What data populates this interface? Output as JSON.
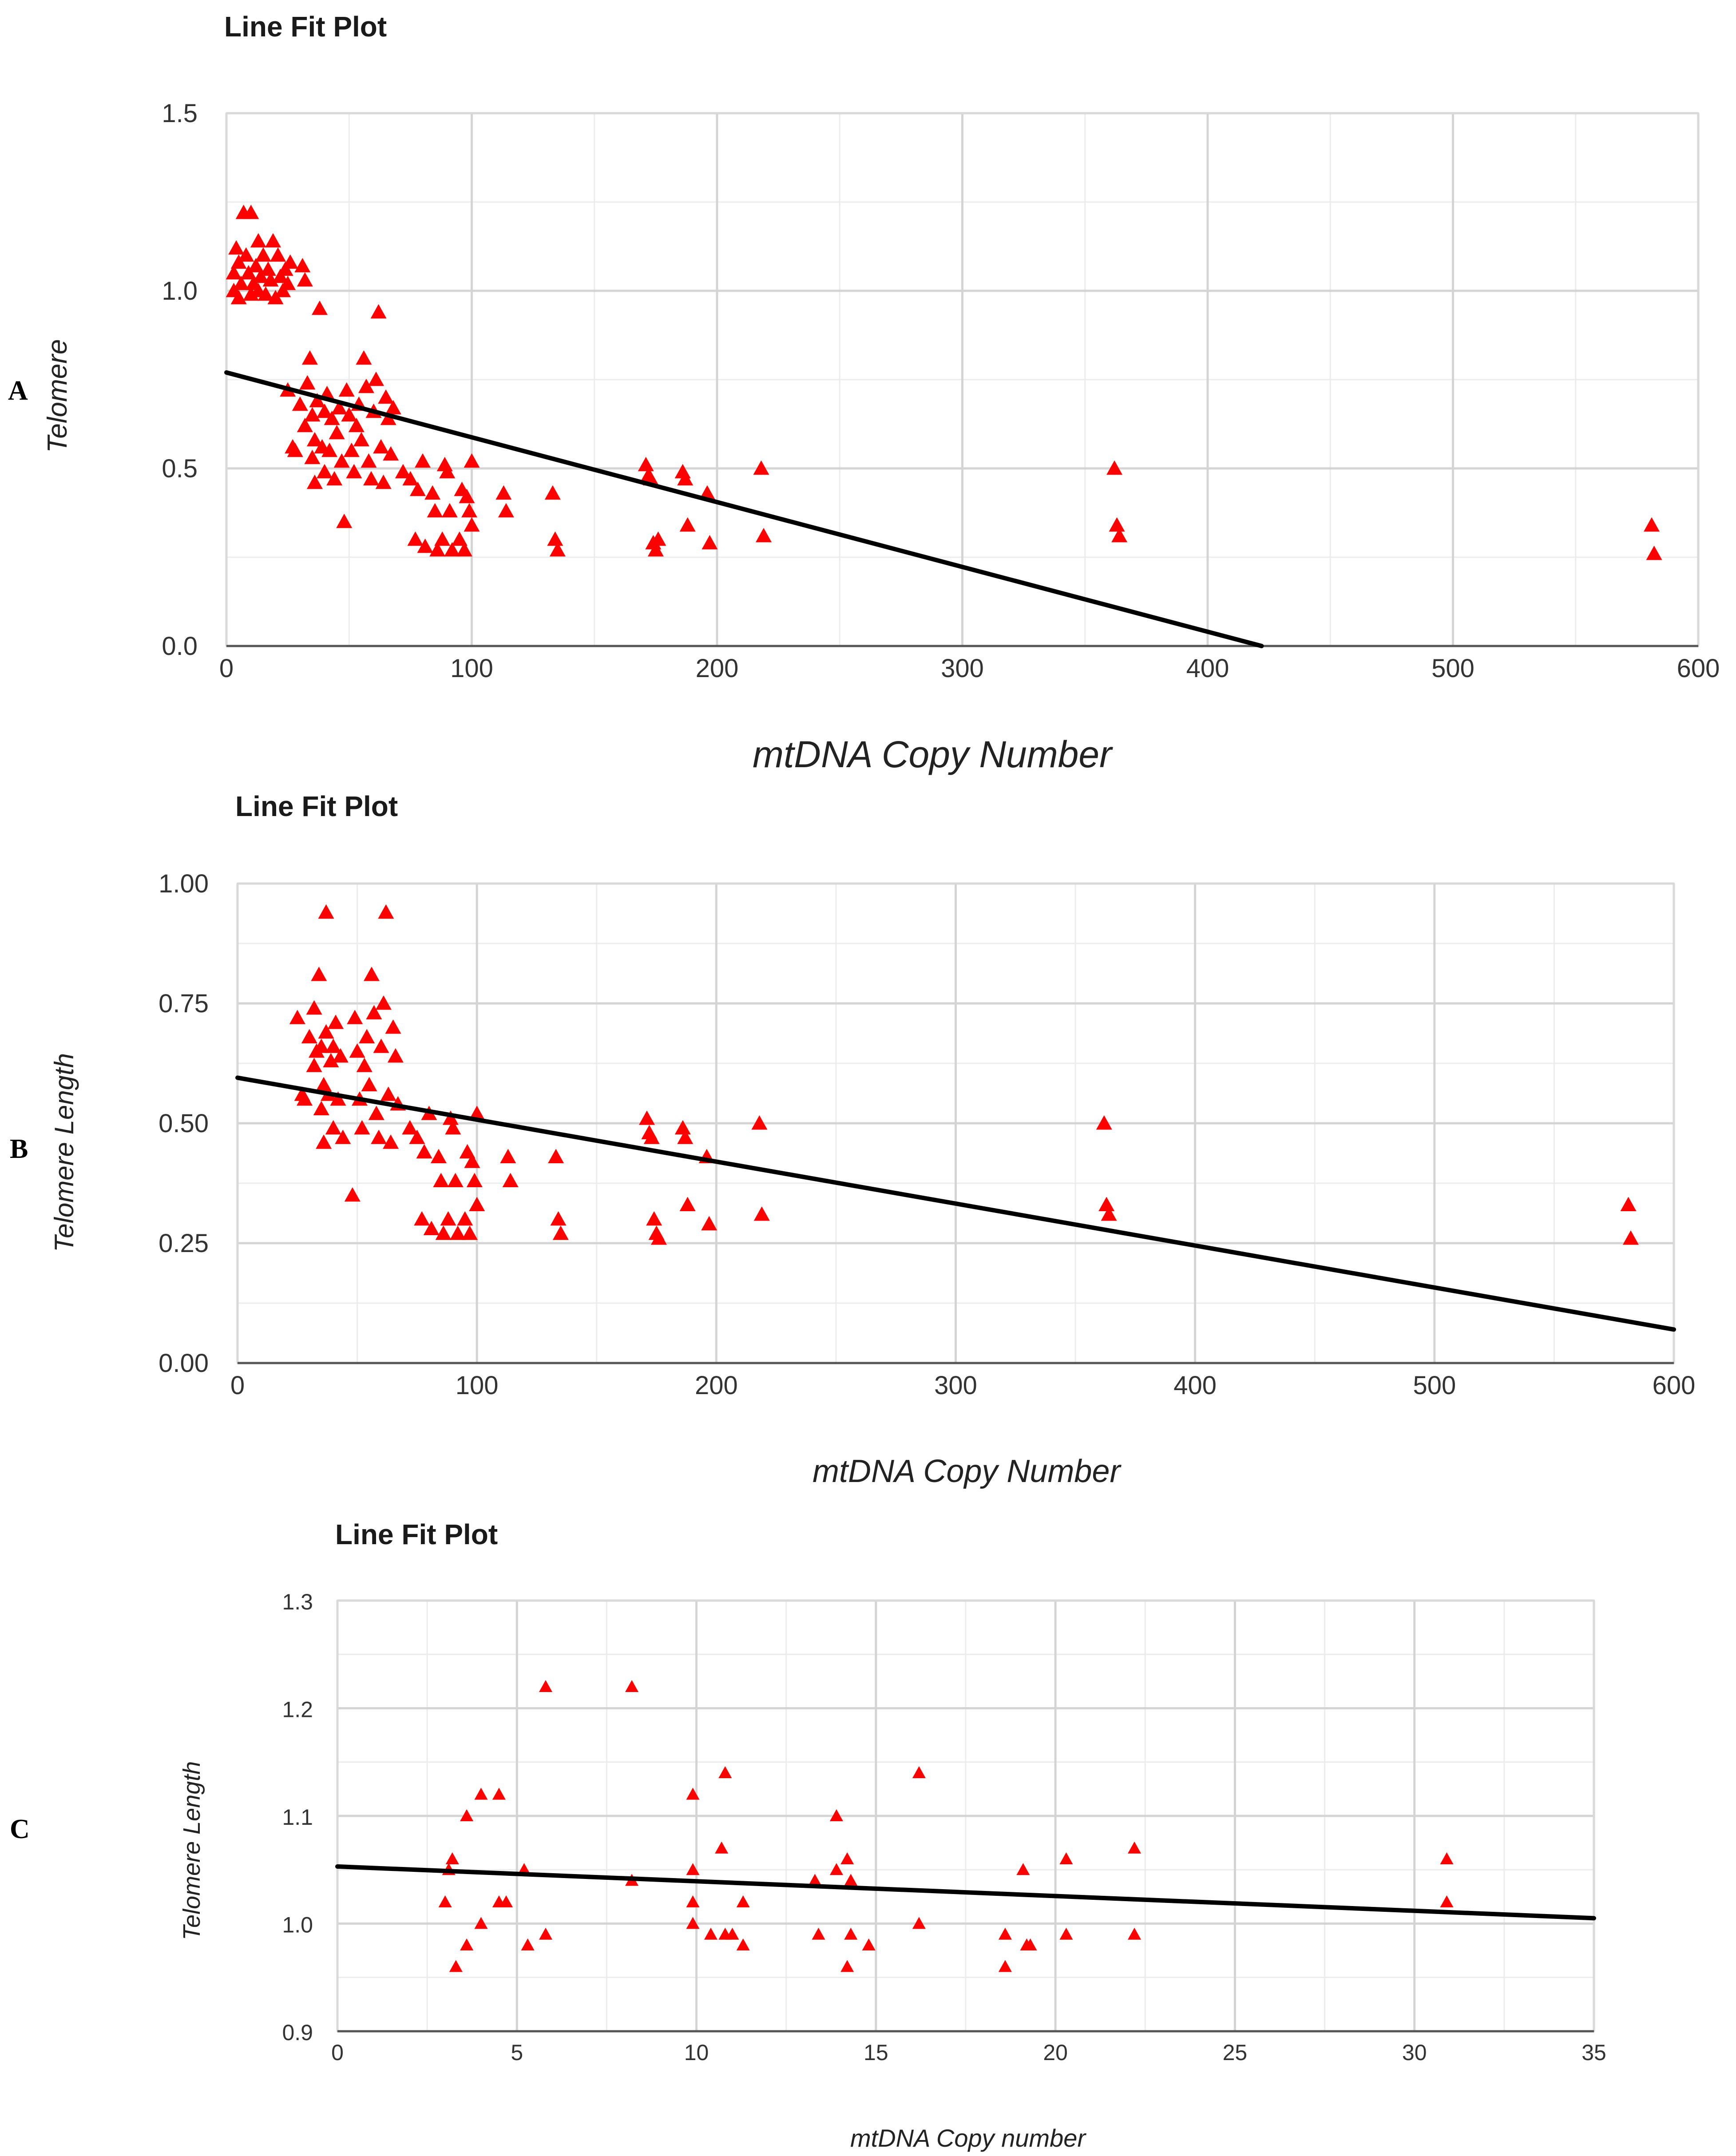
{
  "colors": {
    "marker": "#ff0000",
    "fit_line": "#000000"
  },
  "chart_data": [
    {
      "panel": "A",
      "type": "scatter",
      "title": "Line Fit Plot",
      "xlabel": "mtDNA Copy Number",
      "ylabel": "Telomere",
      "xlim": [
        0,
        600
      ],
      "ylim": [
        0,
        1.5
      ],
      "xticks": [
        0,
        100,
        200,
        300,
        400,
        500,
        600
      ],
      "yticks": [
        0,
        0.5,
        1.0,
        1.5
      ],
      "xtick_labels": [
        "0",
        "100",
        "200",
        "300",
        "400",
        "500",
        "600"
      ],
      "ytick_labels": [
        "0.0",
        "0.5",
        "1.0",
        "1.5"
      ],
      "x_minor_step": 50,
      "y_minor_step": 0.25,
      "fit_line": [
        [
          0,
          0.77
        ],
        [
          422,
          0.0
        ]
      ],
      "points": [
        [
          3,
          1.05
        ],
        [
          3,
          1.0
        ],
        [
          4,
          1.12
        ],
        [
          5,
          0.98
        ],
        [
          5,
          1.08
        ],
        [
          6,
          1.02
        ],
        [
          7,
          1.22
        ],
        [
          8,
          1.1
        ],
        [
          9,
          1.05
        ],
        [
          10,
          1.22
        ],
        [
          10,
          0.99
        ],
        [
          11,
          1.02
        ],
        [
          12,
          1.07
        ],
        [
          13,
          1.0
        ],
        [
          13,
          1.14
        ],
        [
          14,
          1.04
        ],
        [
          15,
          1.1
        ],
        [
          16,
          0.99
        ],
        [
          17,
          1.06
        ],
        [
          18,
          1.03
        ],
        [
          19,
          1.14
        ],
        [
          20,
          0.98
        ],
        [
          21,
          1.1
        ],
        [
          22,
          1.04
        ],
        [
          23,
          1.0
        ],
        [
          24,
          1.06
        ],
        [
          25,
          1.02
        ],
        [
          26,
          1.08
        ],
        [
          25,
          0.72
        ],
        [
          27,
          0.56
        ],
        [
          28,
          0.55
        ],
        [
          30,
          0.68
        ],
        [
          31,
          1.07
        ],
        [
          32,
          1.03
        ],
        [
          32,
          0.62
        ],
        [
          33,
          0.74
        ],
        [
          34,
          0.81
        ],
        [
          35,
          0.65
        ],
        [
          35,
          0.53
        ],
        [
          36,
          0.58
        ],
        [
          36,
          0.46
        ],
        [
          37,
          0.69
        ],
        [
          38,
          0.95
        ],
        [
          39,
          0.56
        ],
        [
          40,
          0.49
        ],
        [
          40,
          0.66
        ],
        [
          41,
          0.71
        ],
        [
          42,
          0.55
        ],
        [
          43,
          0.64
        ],
        [
          44,
          0.47
        ],
        [
          45,
          0.6
        ],
        [
          46,
          0.67
        ],
        [
          47,
          0.52
        ],
        [
          48,
          0.35
        ],
        [
          49,
          0.72
        ],
        [
          50,
          0.65
        ],
        [
          51,
          0.55
        ],
        [
          52,
          0.49
        ],
        [
          53,
          0.62
        ],
        [
          54,
          0.68
        ],
        [
          55,
          0.58
        ],
        [
          56,
          0.81
        ],
        [
          57,
          0.73
        ],
        [
          58,
          0.52
        ],
        [
          59,
          0.47
        ],
        [
          60,
          0.66
        ],
        [
          61,
          0.75
        ],
        [
          62,
          0.94
        ],
        [
          63,
          0.56
        ],
        [
          64,
          0.46
        ],
        [
          65,
          0.7
        ],
        [
          66,
          0.64
        ],
        [
          67,
          0.54
        ],
        [
          68,
          0.67
        ],
        [
          72,
          0.49
        ],
        [
          75,
          0.47
        ],
        [
          77,
          0.3
        ],
        [
          78,
          0.44
        ],
        [
          80,
          0.52
        ],
        [
          81,
          0.28
        ],
        [
          84,
          0.43
        ],
        [
          85,
          0.38
        ],
        [
          86,
          0.27
        ],
        [
          88,
          0.3
        ],
        [
          89,
          0.51
        ],
        [
          90,
          0.49
        ],
        [
          91,
          0.38
        ],
        [
          92,
          0.27
        ],
        [
          95,
          0.3
        ],
        [
          96,
          0.44
        ],
        [
          97,
          0.27
        ],
        [
          98,
          0.42
        ],
        [
          99,
          0.38
        ],
        [
          100,
          0.52
        ],
        [
          100,
          0.34
        ],
        [
          113,
          0.43
        ],
        [
          114,
          0.38
        ],
        [
          133,
          0.43
        ],
        [
          134,
          0.3
        ],
        [
          135,
          0.27
        ],
        [
          171,
          0.51
        ],
        [
          172,
          0.48
        ],
        [
          173,
          0.47
        ],
        [
          174,
          0.29
        ],
        [
          175,
          0.27
        ],
        [
          176,
          0.3
        ],
        [
          186,
          0.49
        ],
        [
          187,
          0.47
        ],
        [
          188,
          0.34
        ],
        [
          196,
          0.43
        ],
        [
          197,
          0.29
        ],
        [
          218,
          0.5
        ],
        [
          219,
          0.31
        ],
        [
          362,
          0.5
        ],
        [
          363,
          0.34
        ],
        [
          364,
          0.31
        ],
        [
          581,
          0.34
        ],
        [
          582,
          0.26
        ]
      ]
    },
    {
      "panel": "B",
      "type": "scatter",
      "title": "Line Fit Plot",
      "xlabel": "mtDNA Copy Number",
      "ylabel": "Telomere Length",
      "xlim": [
        0,
        600
      ],
      "ylim": [
        0,
        1.0
      ],
      "xticks": [
        0,
        100,
        200,
        300,
        400,
        500,
        600
      ],
      "yticks": [
        0,
        0.25,
        0.5,
        0.75,
        1.0
      ],
      "xtick_labels": [
        "0",
        "100",
        "200",
        "300",
        "400",
        "500",
        "600"
      ],
      "ytick_labels": [
        "0.00",
        "0.25",
        "0.50",
        "0.75",
        "1.00"
      ],
      "x_minor_step": 50,
      "y_minor_step": 0.125,
      "fit_line": [
        [
          0,
          0.595
        ],
        [
          600,
          0.07
        ]
      ],
      "points": [
        [
          25,
          0.72
        ],
        [
          27,
          0.56
        ],
        [
          28,
          0.55
        ],
        [
          30,
          0.68
        ],
        [
          32,
          0.62
        ],
        [
          32,
          0.74
        ],
        [
          33,
          0.65
        ],
        [
          34,
          0.81
        ],
        [
          35,
          0.53
        ],
        [
          35,
          0.66
        ],
        [
          36,
          0.58
        ],
        [
          36,
          0.46
        ],
        [
          37,
          0.69
        ],
        [
          37,
          0.94
        ],
        [
          38,
          0.56
        ],
        [
          39,
          0.63
        ],
        [
          40,
          0.49
        ],
        [
          40,
          0.66
        ],
        [
          41,
          0.71
        ],
        [
          42,
          0.55
        ],
        [
          43,
          0.64
        ],
        [
          44,
          0.47
        ],
        [
          48,
          0.35
        ],
        [
          49,
          0.72
        ],
        [
          50,
          0.65
        ],
        [
          51,
          0.55
        ],
        [
          52,
          0.49
        ],
        [
          53,
          0.62
        ],
        [
          54,
          0.68
        ],
        [
          55,
          0.58
        ],
        [
          56,
          0.81
        ],
        [
          57,
          0.73
        ],
        [
          58,
          0.52
        ],
        [
          59,
          0.47
        ],
        [
          60,
          0.66
        ],
        [
          61,
          0.75
        ],
        [
          62,
          0.94
        ],
        [
          63,
          0.56
        ],
        [
          64,
          0.46
        ],
        [
          65,
          0.7
        ],
        [
          66,
          0.64
        ],
        [
          67,
          0.54
        ],
        [
          72,
          0.49
        ],
        [
          75,
          0.47
        ],
        [
          77,
          0.3
        ],
        [
          78,
          0.44
        ],
        [
          80,
          0.52
        ],
        [
          81,
          0.28
        ],
        [
          84,
          0.43
        ],
        [
          85,
          0.38
        ],
        [
          86,
          0.27
        ],
        [
          88,
          0.3
        ],
        [
          89,
          0.51
        ],
        [
          90,
          0.49
        ],
        [
          91,
          0.38
        ],
        [
          92,
          0.27
        ],
        [
          95,
          0.3
        ],
        [
          96,
          0.44
        ],
        [
          97,
          0.27
        ],
        [
          98,
          0.42
        ],
        [
          99,
          0.38
        ],
        [
          100,
          0.52
        ],
        [
          100,
          0.33
        ],
        [
          113,
          0.43
        ],
        [
          114,
          0.38
        ],
        [
          133,
          0.43
        ],
        [
          134,
          0.3
        ],
        [
          135,
          0.27
        ],
        [
          171,
          0.51
        ],
        [
          172,
          0.48
        ],
        [
          173,
          0.47
        ],
        [
          174,
          0.3
        ],
        [
          175,
          0.27
        ],
        [
          176,
          0.26
        ],
        [
          186,
          0.49
        ],
        [
          187,
          0.47
        ],
        [
          188,
          0.33
        ],
        [
          196,
          0.43
        ],
        [
          197,
          0.29
        ],
        [
          218,
          0.5
        ],
        [
          219,
          0.31
        ],
        [
          362,
          0.5
        ],
        [
          363,
          0.33
        ],
        [
          364,
          0.31
        ],
        [
          581,
          0.33
        ],
        [
          582,
          0.26
        ]
      ]
    },
    {
      "panel": "C",
      "type": "scatter",
      "title": "Line Fit Plot",
      "xlabel": "mtDNA Copy number",
      "ylabel": "Telomere Length",
      "xlim": [
        0,
        35
      ],
      "ylim": [
        0.9,
        1.3
      ],
      "xticks": [
        0,
        5,
        10,
        15,
        20,
        25,
        30,
        35
      ],
      "yticks": [
        0.9,
        1.0,
        1.1,
        1.2,
        1.3
      ],
      "xtick_labels": [
        "0",
        "5",
        "10",
        "15",
        "20",
        "25",
        "30",
        "35"
      ],
      "ytick_labels": [
        "0.9",
        "1.0",
        "1.1",
        "1.2",
        "1.3"
      ],
      "x_minor_step": 2.5,
      "y_minor_step": 0.05,
      "fit_line": [
        [
          0,
          1.053
        ],
        [
          35,
          1.005
        ]
      ],
      "points": [
        [
          3.0,
          1.02
        ],
        [
          3.1,
          1.05
        ],
        [
          3.2,
          1.06
        ],
        [
          3.3,
          0.96
        ],
        [
          3.6,
          0.98
        ],
        [
          3.6,
          1.1
        ],
        [
          4.0,
          1.0
        ],
        [
          4.0,
          1.12
        ],
        [
          4.5,
          1.02
        ],
        [
          4.5,
          1.12
        ],
        [
          4.7,
          1.02
        ],
        [
          5.2,
          1.05
        ],
        [
          5.3,
          0.98
        ],
        [
          5.8,
          0.99
        ],
        [
          5.8,
          1.22
        ],
        [
          8.2,
          1.22
        ],
        [
          8.2,
          1.04
        ],
        [
          9.9,
          1.12
        ],
        [
          9.9,
          1.05
        ],
        [
          9.9,
          1.02
        ],
        [
          9.9,
          1.0
        ],
        [
          10.4,
          0.99
        ],
        [
          10.7,
          1.07
        ],
        [
          10.8,
          0.99
        ],
        [
          10.8,
          1.14
        ],
        [
          11.0,
          0.99
        ],
        [
          11.3,
          1.02
        ],
        [
          11.3,
          0.98
        ],
        [
          13.3,
          1.04
        ],
        [
          13.4,
          0.99
        ],
        [
          13.9,
          1.1
        ],
        [
          13.9,
          1.05
        ],
        [
          14.2,
          1.06
        ],
        [
          14.2,
          0.96
        ],
        [
          14.3,
          1.04
        ],
        [
          14.3,
          0.99
        ],
        [
          14.8,
          0.98
        ],
        [
          16.2,
          1.14
        ],
        [
          16.2,
          1.0
        ],
        [
          18.6,
          0.99
        ],
        [
          18.6,
          0.96
        ],
        [
          19.1,
          1.05
        ],
        [
          19.2,
          0.98
        ],
        [
          19.3,
          0.98
        ],
        [
          20.3,
          1.06
        ],
        [
          20.3,
          0.99
        ],
        [
          22.2,
          1.07
        ],
        [
          22.2,
          0.99
        ],
        [
          30.9,
          1.06
        ],
        [
          30.9,
          1.02
        ]
      ]
    }
  ]
}
